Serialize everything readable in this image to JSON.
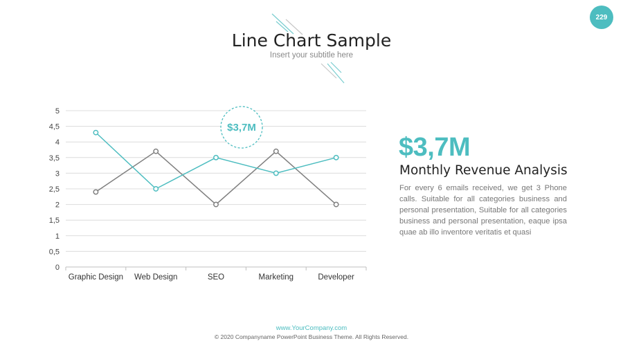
{
  "page_number": "229",
  "header": {
    "title": "Line Chart Sample",
    "subtitle": "Insert your subtitle here"
  },
  "chart_data": {
    "type": "line",
    "categories": [
      "Graphic Design",
      "Web Design",
      "SEO",
      "Marketing",
      "Developer"
    ],
    "y_ticks": [
      "0",
      "0,5",
      "1",
      "1,5",
      "2",
      "2,5",
      "3",
      "3,5",
      "4",
      "4,5",
      "5"
    ],
    "ylim": [
      0,
      5
    ],
    "grid": true,
    "series": [
      {
        "color": "#4dbdc0",
        "values": [
          4.3,
          2.5,
          3.5,
          3.0,
          3.5
        ]
      },
      {
        "color": "#7f7f7f",
        "values": [
          2.4,
          3.7,
          2.0,
          3.7,
          2.0
        ]
      }
    ],
    "annotation": "$3,7M"
  },
  "panel": {
    "value": "$3,7M",
    "heading": "Monthly Revenue Analysis",
    "body": "For every 6 emails received, we get 3 Phone calls. Suitable for all categories business and personal presentation, Suitable for all categories business and personal presentation, eaque ipsa quae ab illo inventore veritatis et quasi"
  },
  "footer": {
    "url": "www.YourCompany.com",
    "copyright": "© 2020 Companyname PowerPoint Business Theme. All Rights Reserved."
  },
  "colors": {
    "accent": "#4dbdc0",
    "secondary": "#7f7f7f"
  }
}
